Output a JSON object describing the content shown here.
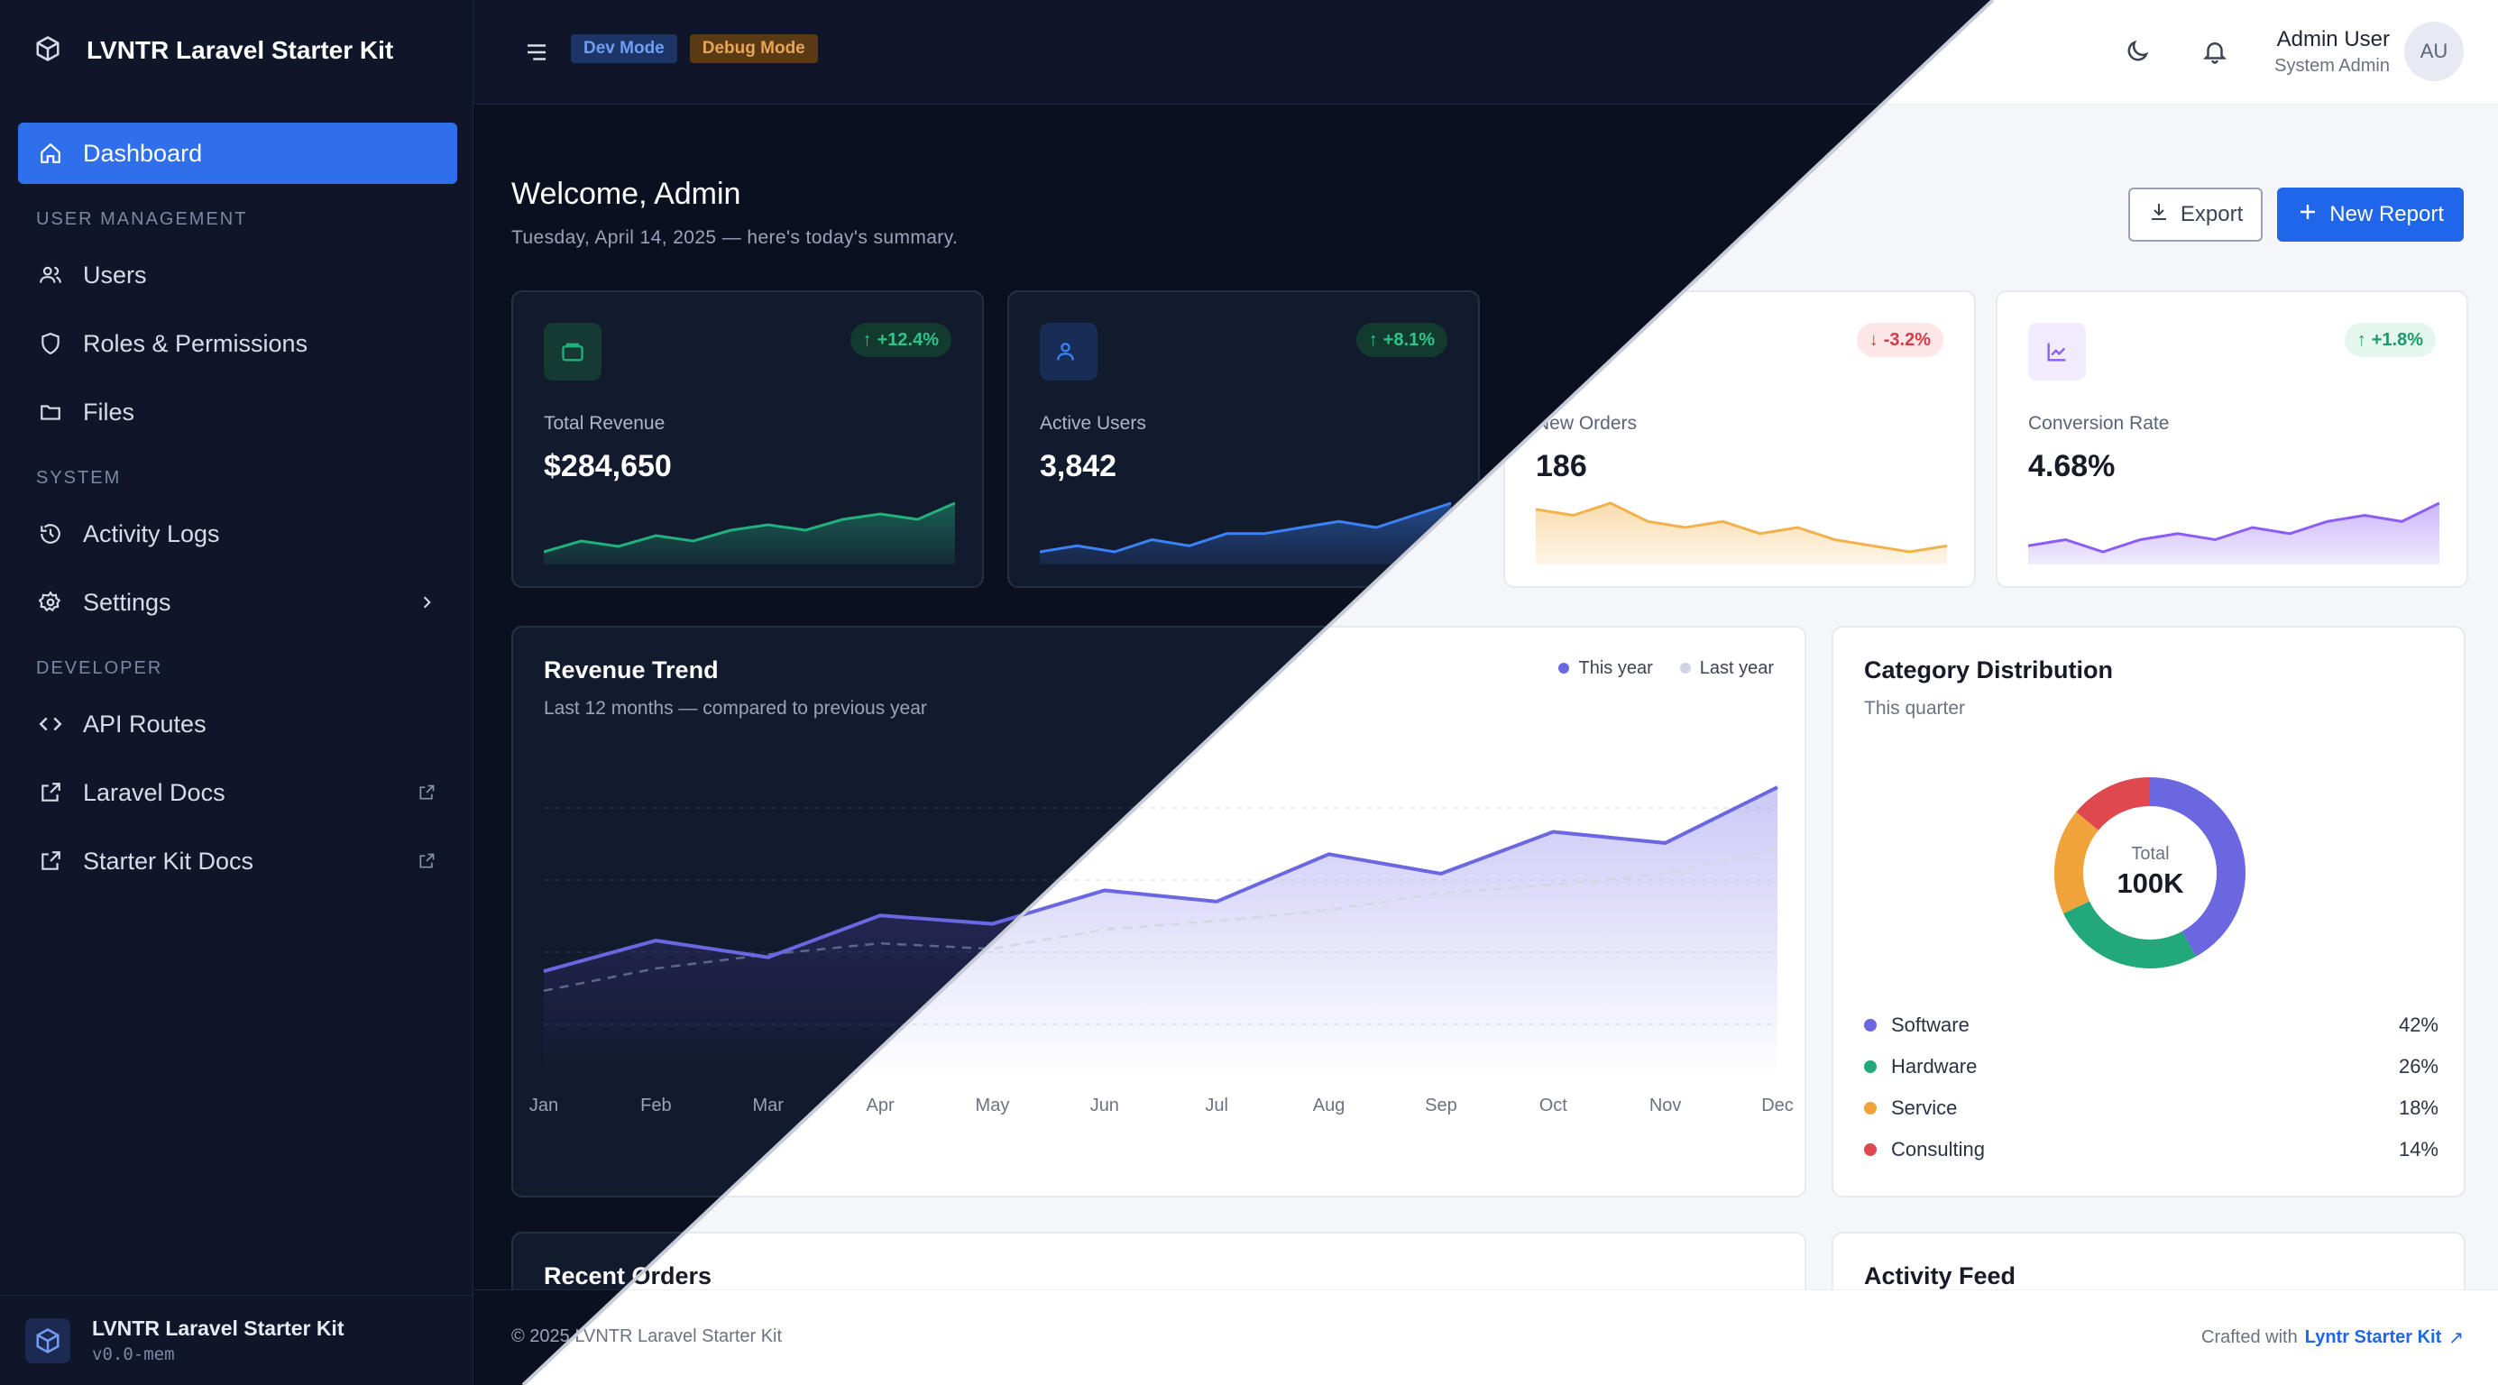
{
  "app": {
    "name": "LVNTR Laravel Starter Kit",
    "version": "v0.0-mem"
  },
  "badges": {
    "dev": "Dev Mode",
    "debug": "Debug Mode"
  },
  "user": {
    "name": "Admin User",
    "role": "System Admin",
    "initials": "AU"
  },
  "sidebar": {
    "dashboard": "Dashboard",
    "sections": {
      "user_management": "USER MANAGEMENT",
      "system": "SYSTEM",
      "developer": "DEVELOPER"
    },
    "items": {
      "users": "Users",
      "roles": "Roles & Permissions",
      "files": "Files",
      "activity_logs": "Activity Logs",
      "settings": "Settings",
      "api_routes": "API Routes",
      "laravel_docs": "Laravel Docs",
      "starter_kit_docs": "Starter Kit Docs"
    }
  },
  "welcome": {
    "title": "Welcome, Admin",
    "subtitle": "Tuesday, April 14, 2025 — here's today's summary."
  },
  "actions": {
    "export": "Export",
    "new_report": "New Report"
  },
  "stats": [
    {
      "label": "Total Revenue",
      "value": "$284,650",
      "change": "+12.4%",
      "direction": "up",
      "color": "#22b07d",
      "trend": [
        3,
        5,
        4,
        6,
        5,
        7,
        8,
        7,
        9,
        10,
        9,
        12
      ]
    },
    {
      "label": "Active Users",
      "value": "3,842",
      "change": "+8.1%",
      "direction": "up",
      "color": "#3b82f6",
      "trend": [
        2,
        3,
        2,
        4,
        3,
        5,
        5,
        6,
        7,
        6,
        8,
        10
      ]
    },
    {
      "label": "New Orders",
      "value": "186",
      "change": "-3.2%",
      "direction": "down",
      "color": "#f2b14a",
      "trend": [
        9,
        8,
        10,
        7,
        6,
        7,
        5,
        6,
        4,
        3,
        2,
        3
      ]
    },
    {
      "label": "Conversion Rate",
      "value": "4.68%",
      "change": "+1.8%",
      "direction": "up",
      "color": "#8b5cf6",
      "trend": [
        2,
        3,
        1,
        3,
        4,
        3,
        5,
        4,
        6,
        7,
        6,
        9
      ]
    }
  ],
  "revenue_trend": {
    "title": "Revenue Trend",
    "subtitle": "Last 12 months — compared to previous year",
    "legend": {
      "this_year": "This year",
      "last_year": "Last year"
    }
  },
  "category": {
    "title": "Category Distribution",
    "subtitle": "This quarter",
    "total_label": "Total",
    "total_value": "100K",
    "items": [
      {
        "name": "Software",
        "pct": "42%",
        "color": "#6b67e0"
      },
      {
        "name": "Hardware",
        "pct": "26%",
        "color": "#22a87a"
      },
      {
        "name": "Service",
        "pct": "18%",
        "color": "#f0a33a"
      },
      {
        "name": "Consulting",
        "pct": "14%",
        "color": "#e0484f"
      }
    ]
  },
  "lower_panels": {
    "recent_orders": "Recent Orders",
    "activity_feed": "Activity Feed"
  },
  "footer": {
    "copyright": "© 2025 LVNTR Laravel Starter Kit",
    "crafted_with": "Crafted with",
    "link": "Lyntr Starter Kit"
  },
  "chart_data": {
    "type": "area",
    "title": "Revenue Trend",
    "categories": [
      "Jan",
      "Feb",
      "Mar",
      "Apr",
      "May",
      "Jun",
      "Jul",
      "Aug",
      "Sep",
      "Oct",
      "Nov",
      "Dec"
    ],
    "series": [
      {
        "name": "This year",
        "values": [
          32,
          43,
          37,
          52,
          49,
          61,
          57,
          74,
          67,
          82,
          78,
          98
        ]
      },
      {
        "name": "Last year",
        "values": [
          25,
          33,
          38,
          42,
          40,
          47,
          50,
          54,
          60,
          63,
          67,
          76
        ]
      }
    ],
    "ylim": [
      0,
      110
    ],
    "grid": true,
    "legend": "top-right"
  },
  "donut_data": {
    "type": "pie",
    "categories": [
      "Software",
      "Hardware",
      "Service",
      "Consulting"
    ],
    "values": [
      42,
      26,
      18,
      14
    ]
  }
}
